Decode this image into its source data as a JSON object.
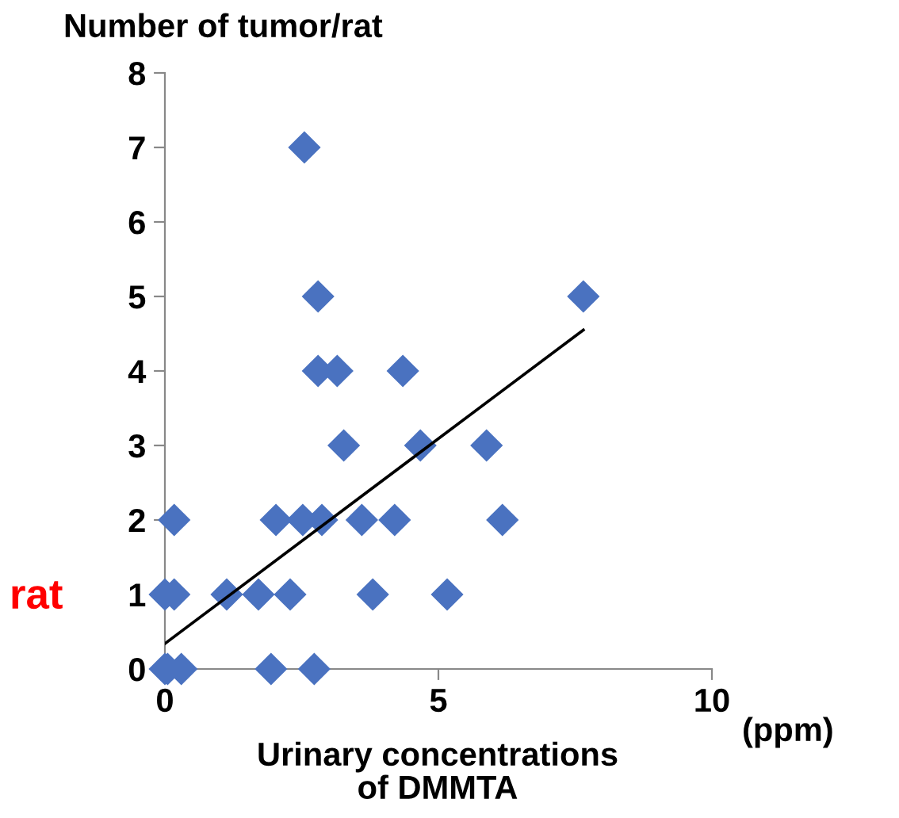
{
  "chart_data": {
    "type": "scatter",
    "ylabel": "Number of tumor/rat",
    "xlabel": "Urinary concentrations\nof DMMTA",
    "annotations": [
      "(ppm)",
      "rat"
    ],
    "xlim": [
      0,
      10
    ],
    "xticks": [
      0,
      5,
      10
    ],
    "ylim": [
      0,
      8
    ],
    "yticks": [
      0,
      1,
      2,
      3,
      4,
      5,
      6,
      7,
      8
    ],
    "grid": false,
    "legend": false,
    "marker": "diamond",
    "series": [
      {
        "color": "#4a72c0",
        "x": [
          2.55,
          2.8,
          7.65,
          2.8,
          3.15,
          4.35,
          3.27,
          4.67,
          5.88,
          0.17,
          2.03,
          2.52,
          2.87,
          3.6,
          4.2,
          6.17,
          0.0,
          0.17,
          1.13,
          1.71,
          2.29,
          3.8,
          5.16,
          0.0,
          0.05,
          0.3,
          1.94,
          2.73
        ],
        "values": [
          7,
          5,
          5,
          4,
          4,
          4,
          3,
          3,
          3,
          2,
          2,
          2,
          2,
          2,
          2,
          2,
          1,
          1,
          1,
          1,
          1,
          1,
          1,
          0,
          0,
          0,
          0,
          0
        ]
      },
      {
        "type": "line",
        "color": "#000000",
        "marker": "none",
        "line_style": "solid",
        "x": [
          0,
          7.65
        ],
        "values": [
          0.34,
          4.55
        ]
      }
    ]
  }
}
